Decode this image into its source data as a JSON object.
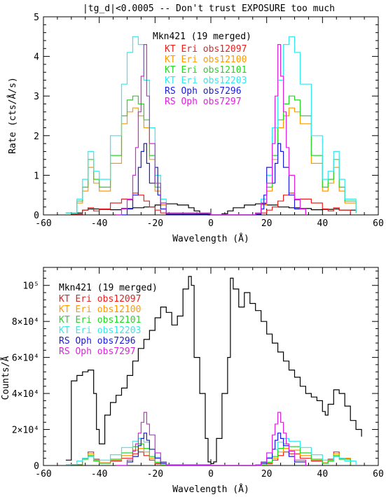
{
  "page_title": "|tg_d|<0.0005  --  Don't trust EXPOSURE too much",
  "series_colors": {
    "mkn421": "#000000",
    "obs12097": "#e8201e",
    "obs12100": "#ff9900",
    "obs12101": "#22d822",
    "obs12203": "#33e8ee",
    "obs7296": "#1a1ae0",
    "obs7297": "#e020e0"
  },
  "chart_data": [
    {
      "type": "line",
      "title": "|tg_d|<0.0005  --  Don't trust EXPOSURE too much",
      "xlabel": "Wavelength (Å)",
      "ylabel": "Rate (cts/Å/s)",
      "xlim": [
        -60,
        60
      ],
      "ylim": [
        0,
        5
      ],
      "x_ticks": [
        "-60",
        "-40",
        "-20",
        "0",
        "20",
        "40",
        "60"
      ],
      "y_ticks": [
        "0",
        "1",
        "2",
        "3",
        "4",
        "5"
      ],
      "x_tick_values": [
        -60,
        -40,
        -20,
        0,
        20,
        40,
        60
      ],
      "y_tick_values": [
        0,
        1,
        2,
        3,
        4,
        5
      ],
      "grid": false,
      "legend_position": "top-center",
      "series": [
        {
          "name": "Mkn421 (19 merged)",
          "color_key": "mkn421",
          "x": [
            -52,
            -46,
            -44,
            -40,
            -36,
            -32,
            -28,
            -24,
            -20,
            -16,
            -12,
            -8,
            -6,
            -4,
            -1,
            0,
            1,
            4,
            6,
            8,
            12,
            16,
            20,
            24,
            28,
            32,
            36,
            40,
            44,
            46,
            52
          ],
          "y": [
            0.05,
            0.12,
            0.15,
            0.14,
            0.13,
            0.16,
            0.18,
            0.2,
            0.25,
            0.28,
            0.25,
            0.18,
            0.1,
            0.03,
            0.0,
            0.0,
            0.0,
            0.03,
            0.1,
            0.18,
            0.25,
            0.28,
            0.25,
            0.2,
            0.18,
            0.16,
            0.13,
            0.14,
            0.15,
            0.12,
            0.05
          ]
        },
        {
          "name": "KT Eri obs12097",
          "color_key": "obs12097",
          "x": [
            -50,
            -46,
            -44,
            -42,
            -40,
            -36,
            -32,
            -30,
            -28,
            -26,
            -24,
            -22,
            -20,
            -18,
            -16,
            0,
            16,
            18,
            20,
            22,
            24,
            26,
            28,
            30,
            32,
            36,
            40,
            42,
            44,
            46,
            50
          ],
          "y": [
            0.02,
            0.12,
            0.18,
            0.1,
            0.15,
            0.3,
            0.4,
            0.38,
            0.55,
            0.5,
            0.35,
            0.2,
            0.12,
            0.05,
            0.02,
            0.0,
            0.02,
            0.05,
            0.12,
            0.2,
            0.35,
            0.5,
            0.55,
            0.38,
            0.4,
            0.3,
            0.15,
            0.1,
            0.18,
            0.12,
            0.02
          ]
        },
        {
          "name": "KT Eri obs12100",
          "color_key": "obs12100",
          "x": [
            -52,
            -48,
            -46,
            -44,
            -42,
            -40,
            -36,
            -32,
            -30,
            -28,
            -26,
            -24,
            -22,
            -20,
            -18,
            -16,
            0,
            16,
            18,
            20,
            22,
            24,
            26,
            28,
            30,
            32,
            36,
            40,
            42,
            44,
            46,
            48,
            52
          ],
          "y": [
            0.05,
            0.3,
            0.6,
            1.2,
            0.8,
            0.6,
            1.3,
            2.3,
            2.6,
            2.7,
            2.5,
            2.2,
            1.4,
            0.6,
            0.25,
            0.05,
            0.0,
            0.05,
            0.25,
            0.6,
            1.4,
            2.2,
            2.5,
            2.7,
            2.6,
            2.3,
            1.3,
            0.6,
            0.8,
            1.2,
            0.6,
            0.3,
            0.05
          ]
        },
        {
          "name": "KT Eri obs12101",
          "color_key": "obs12101",
          "x": [
            -52,
            -48,
            -46,
            -44,
            -42,
            -40,
            -36,
            -32,
            -30,
            -28,
            -26,
            -24,
            -22,
            -20,
            -18,
            -16,
            0,
            16,
            18,
            20,
            22,
            24,
            26,
            28,
            30,
            32,
            36,
            40,
            42,
            44,
            46,
            48,
            52
          ],
          "y": [
            0.05,
            0.35,
            0.7,
            1.4,
            0.9,
            0.7,
            1.5,
            2.5,
            2.9,
            3.0,
            2.8,
            2.4,
            1.5,
            0.7,
            0.3,
            0.05,
            0.0,
            0.05,
            0.3,
            0.7,
            1.5,
            2.4,
            2.8,
            3.0,
            2.9,
            2.5,
            1.5,
            0.7,
            0.9,
            1.4,
            0.7,
            0.35,
            0.05
          ]
        },
        {
          "name": "KT Eri obs12203",
          "color_key": "obs12203",
          "x": [
            -52,
            -48,
            -46,
            -44,
            -42,
            -40,
            -36,
            -32,
            -30,
            -28,
            -26,
            -24,
            -22,
            -20,
            -18,
            -16,
            0,
            16,
            18,
            20,
            22,
            24,
            26,
            28,
            30,
            32,
            36,
            40,
            42,
            44,
            46,
            48,
            52
          ],
          "y": [
            0.05,
            0.4,
            0.9,
            1.6,
            1.1,
            0.9,
            2.0,
            3.3,
            4.1,
            4.5,
            4.3,
            3.4,
            2.2,
            1.0,
            0.4,
            0.05,
            0.0,
            0.05,
            0.4,
            1.0,
            2.2,
            3.4,
            4.3,
            4.5,
            4.1,
            3.3,
            2.0,
            0.9,
            1.1,
            1.6,
            0.9,
            0.4,
            0.05
          ]
        },
        {
          "name": "RS Oph obs7296",
          "color_key": "obs7296",
          "x": [
            -34,
            -30,
            -28,
            -26,
            -25,
            -24,
            -23,
            -22,
            -20,
            -19,
            -18,
            -16,
            0,
            16,
            18,
            19,
            20,
            22,
            23,
            24,
            25,
            26,
            28,
            30,
            34
          ],
          "y": [
            0.0,
            0.15,
            0.5,
            1.2,
            1.6,
            1.8,
            1.3,
            0.8,
            1.2,
            0.5,
            0.15,
            0.02,
            0.0,
            0.02,
            0.15,
            0.5,
            1.2,
            0.8,
            1.3,
            1.8,
            1.6,
            1.2,
            0.5,
            0.15,
            0.0
          ]
        },
        {
          "name": "RS Oph obs7297",
          "color_key": "obs7297",
          "x": [
            -34,
            -32,
            -30,
            -28,
            -27,
            -26,
            -25,
            -24,
            -23,
            -22,
            -20,
            -18,
            -16,
            0,
            16,
            18,
            20,
            22,
            23,
            24,
            25,
            26,
            27,
            28,
            30,
            32,
            34
          ],
          "y": [
            0.0,
            0.15,
            0.4,
            1.0,
            1.7,
            2.6,
            3.5,
            4.3,
            3.0,
            1.8,
            0.8,
            0.3,
            0.05,
            0.0,
            0.05,
            0.3,
            0.8,
            1.8,
            3.0,
            4.3,
            3.5,
            2.6,
            1.7,
            1.0,
            0.4,
            0.15,
            0.0
          ]
        }
      ]
    },
    {
      "type": "line",
      "title": "",
      "xlabel": "Wavelength (Å)",
      "ylabel": "Counts/Å",
      "xlim": [
        -60,
        60
      ],
      "ylim": [
        0,
        110000
      ],
      "x_ticks": [
        "-60",
        "-40",
        "-20",
        "0",
        "20",
        "40",
        "60"
      ],
      "y_ticks": [
        "0",
        "2×10⁴",
        "4×10⁴",
        "6×10⁴",
        "8×10⁴",
        "10⁵"
      ],
      "x_tick_values": [
        -60,
        -40,
        -20,
        0,
        20,
        40,
        60
      ],
      "y_tick_values": [
        0,
        20000,
        40000,
        60000,
        80000,
        100000
      ],
      "grid": false,
      "legend_position": "top-left",
      "series": [
        {
          "name": "Mkn421 (19 merged)",
          "color_key": "mkn421",
          "x": [
            -52,
            -50,
            -48,
            -46,
            -44,
            -42,
            -41,
            -40,
            -38,
            -36,
            -34,
            -32,
            -30,
            -28,
            -26,
            -24,
            -22,
            -20,
            -18,
            -16,
            -14,
            -12,
            -10,
            -8,
            -7,
            -6,
            -4,
            -2,
            -1,
            0,
            1,
            2,
            4,
            6,
            7,
            8,
            10,
            12,
            14,
            16,
            18,
            20,
            22,
            24,
            26,
            28,
            30,
            32,
            34,
            36,
            38,
            40,
            41,
            42,
            44,
            46,
            48,
            50,
            52,
            54
          ],
          "y": [
            3000,
            47000,
            50000,
            52000,
            53000,
            40000,
            20000,
            12000,
            28000,
            35000,
            39000,
            43000,
            50000,
            58000,
            65000,
            70000,
            75000,
            82000,
            88000,
            85000,
            78000,
            83000,
            98000,
            105000,
            100000,
            60000,
            40000,
            15000,
            2000,
            1000,
            2000,
            15000,
            40000,
            60000,
            104000,
            98000,
            88000,
            96000,
            90000,
            86000,
            80000,
            73000,
            68000,
            63000,
            58000,
            53000,
            49000,
            44000,
            40000,
            38000,
            36000,
            30000,
            28000,
            34000,
            42000,
            40000,
            33000,
            25000,
            20000,
            16000
          ]
        },
        {
          "name": "KT Eri obs12097",
          "color_key": "obs12097",
          "x": [
            -50,
            -46,
            -44,
            -42,
            -40,
            -36,
            -32,
            -28,
            -26,
            -24,
            -22,
            -20,
            -18,
            0,
            18,
            20,
            22,
            24,
            26,
            28,
            32,
            36,
            40,
            42,
            44,
            46,
            50
          ],
          "y": [
            500,
            4000,
            7500,
            3500,
            1500,
            2500,
            4000,
            6500,
            7500,
            5500,
            3000,
            1000,
            300,
            0,
            300,
            1000,
            3000,
            5500,
            7500,
            6500,
            4000,
            2500,
            1500,
            3500,
            7500,
            4000,
            500
          ]
        },
        {
          "name": "KT Eri obs12100",
          "color_key": "obs12100",
          "x": [
            -50,
            -46,
            -44,
            -42,
            -40,
            -36,
            -32,
            -28,
            -26,
            -24,
            -22,
            -20,
            -18,
            0,
            18,
            20,
            22,
            24,
            26,
            28,
            32,
            36,
            40,
            42,
            44,
            46,
            50
          ],
          "y": [
            500,
            4000,
            6500,
            3000,
            1500,
            3000,
            5500,
            8500,
            9500,
            7500,
            4000,
            1500,
            300,
            0,
            300,
            1500,
            4000,
            7500,
            9500,
            8500,
            5500,
            3000,
            1500,
            3000,
            6500,
            4000,
            500
          ]
        },
        {
          "name": "KT Eri obs12101",
          "color_key": "obs12101",
          "x": [
            -50,
            -46,
            -44,
            -42,
            -40,
            -36,
            -32,
            -28,
            -26,
            -24,
            -22,
            -20,
            -18,
            0,
            18,
            20,
            22,
            24,
            26,
            28,
            32,
            36,
            40,
            42,
            44,
            46,
            50
          ],
          "y": [
            500,
            3500,
            5500,
            2500,
            1200,
            3500,
            7000,
            10500,
            12000,
            9500,
            5000,
            1800,
            400,
            0,
            400,
            1800,
            5000,
            9500,
            12000,
            10500,
            7000,
            3500,
            1200,
            2500,
            5500,
            3500,
            500
          ]
        },
        {
          "name": "KT Eri obs12203",
          "color_key": "obs12203",
          "x": [
            -52,
            -48,
            -46,
            -44,
            -42,
            -40,
            -36,
            -32,
            -28,
            -26,
            -24,
            -22,
            -20,
            -18,
            -16,
            0,
            16,
            18,
            20,
            22,
            24,
            26,
            28,
            32,
            36,
            40,
            42,
            44,
            46,
            48,
            52
          ],
          "y": [
            500,
            2500,
            4000,
            5000,
            3000,
            3000,
            6000,
            10000,
            13500,
            15000,
            13000,
            9000,
            4500,
            1500,
            400,
            0,
            400,
            1500,
            4500,
            9000,
            13000,
            15000,
            13500,
            10000,
            6000,
            3000,
            3000,
            5000,
            4000,
            2500,
            500
          ]
        },
        {
          "name": "RS Oph obs7296",
          "color_key": "obs7296",
          "x": [
            -34,
            -30,
            -28,
            -26,
            -25,
            -24,
            -23,
            -22,
            -20,
            -18,
            -16,
            0,
            16,
            18,
            20,
            22,
            23,
            24,
            25,
            26,
            28,
            30,
            34
          ],
          "y": [
            0,
            2000,
            5000,
            11000,
            15000,
            18000,
            14000,
            9000,
            4000,
            1200,
            200,
            0,
            200,
            1200,
            4000,
            9000,
            14000,
            18000,
            15000,
            11000,
            5000,
            2000,
            0
          ]
        },
        {
          "name": "RS Oph obs7297",
          "color_key": "obs7297",
          "x": [
            -34,
            -30,
            -28,
            -27,
            -26,
            -25,
            -24,
            -23,
            -22,
            -20,
            -18,
            -16,
            0,
            16,
            18,
            20,
            22,
            23,
            24,
            25,
            26,
            27,
            28,
            30,
            34
          ],
          "y": [
            0,
            3000,
            8000,
            12000,
            18000,
            24000,
            29500,
            23000,
            17000,
            7000,
            2000,
            300,
            0,
            300,
            2000,
            7000,
            17000,
            23000,
            29500,
            24000,
            18000,
            12000,
            8000,
            3000,
            0
          ]
        }
      ]
    }
  ]
}
